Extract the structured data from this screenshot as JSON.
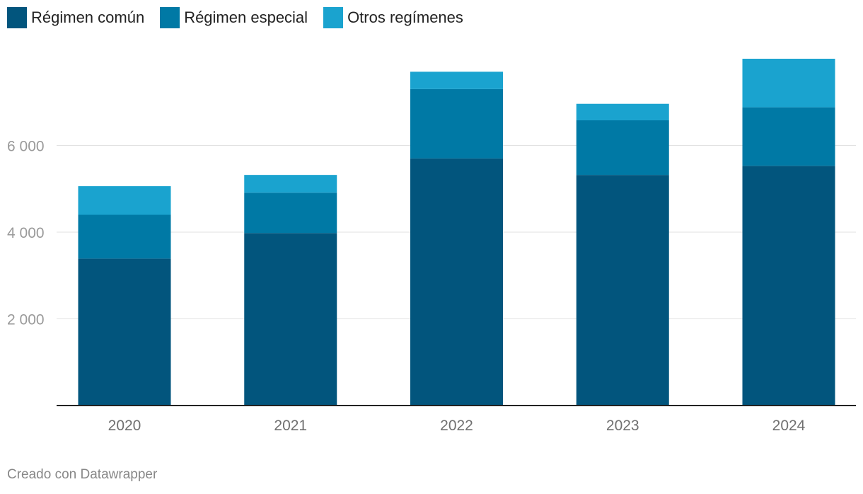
{
  "chart_data": {
    "type": "bar",
    "stacked": true,
    "categories": [
      "2020",
      "2021",
      "2022",
      "2023",
      "2024"
    ],
    "series": [
      {
        "name": "Régimen común",
        "color": "#02557d",
        "values": [
          3390,
          3980,
          5700,
          5320,
          5530
        ]
      },
      {
        "name": "Régimen especial",
        "color": "#0079a5",
        "values": [
          1010,
          930,
          1600,
          1260,
          1350
        ]
      },
      {
        "name": "Otros regímenes",
        "color": "#1aa3cf",
        "values": [
          660,
          410,
          400,
          380,
          1120
        ]
      }
    ],
    "yticks": [
      2000,
      4000,
      6000
    ],
    "ytick_labels": [
      "2 000",
      "4 000",
      "6 000"
    ],
    "ylim": [
      0,
      8000
    ],
    "grid": true,
    "legend_position": "top-left"
  },
  "footer": "Creado con Datawrapper"
}
